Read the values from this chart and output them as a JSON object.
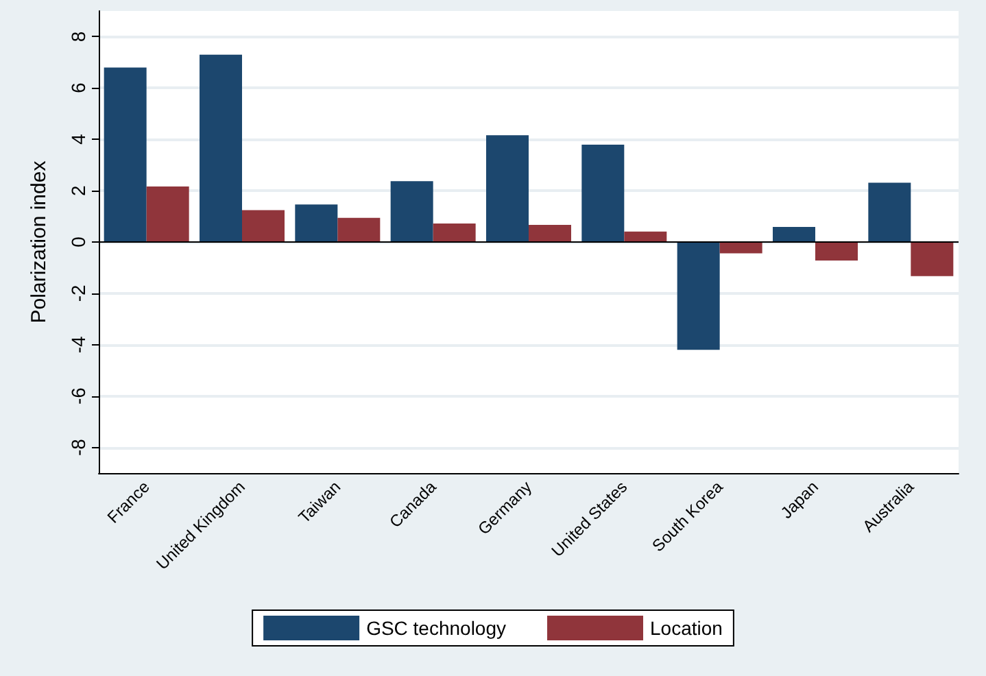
{
  "chart_data": {
    "type": "bar",
    "ylabel": "Polarization index",
    "categories": [
      "France",
      "United Kingdom",
      "Taiwan",
      "Canada",
      "Germany",
      "United States",
      "South Korea",
      "Japan",
      "Australia"
    ],
    "series": [
      {
        "name": "GSC technology",
        "color": "#1c476e",
        "values": [
          6.8,
          7.3,
          1.46,
          2.37,
          4.16,
          3.79,
          -4.2,
          0.59,
          2.31
        ]
      },
      {
        "name": "Location",
        "color": "#90353b",
        "values": [
          2.16,
          1.24,
          0.94,
          0.72,
          0.67,
          0.41,
          -0.44,
          -0.72,
          -1.33
        ]
      }
    ],
    "ylim": [
      -9,
      9
    ],
    "yticks": [
      -8,
      -6,
      -4,
      -2,
      0,
      2,
      4,
      6,
      8
    ],
    "grid": "y",
    "legend": "bottom"
  }
}
